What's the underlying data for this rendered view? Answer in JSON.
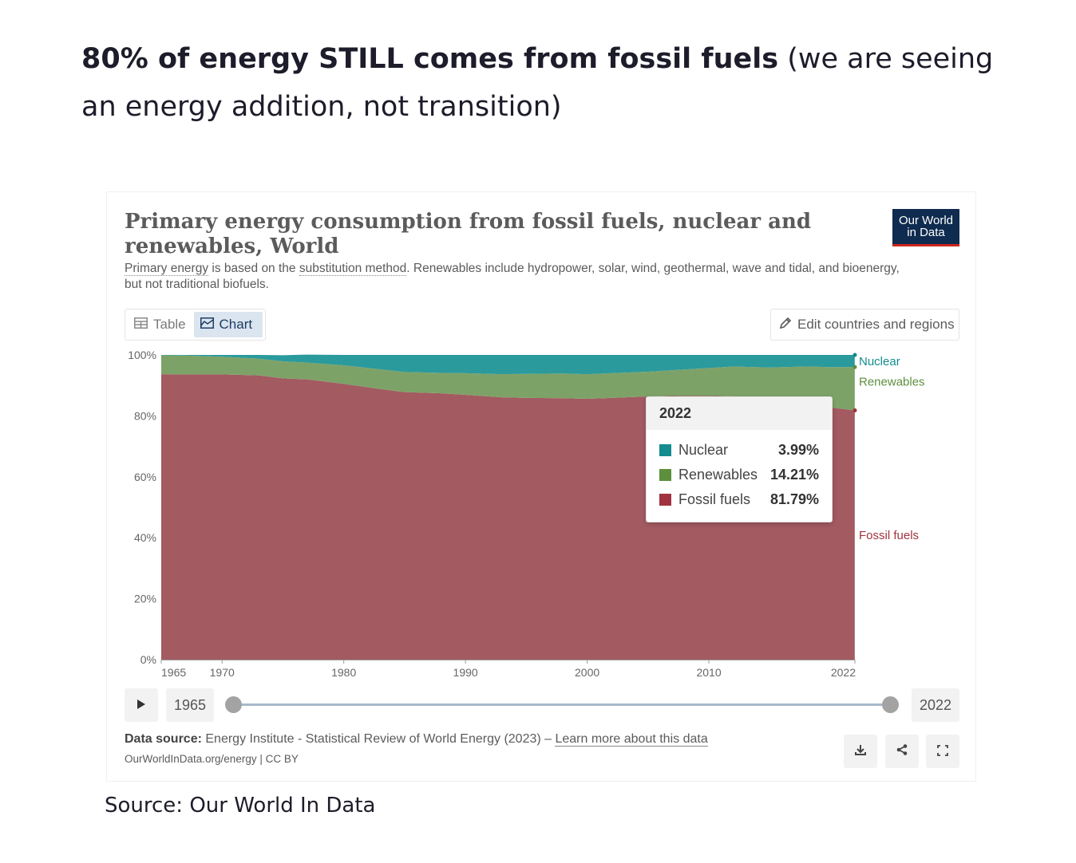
{
  "headline": {
    "bold": "80% of energy STILL comes from fossil fuels",
    "rest": " (we are seeing an energy addition, not transition)"
  },
  "card": {
    "title": "Primary energy consumption from fossil fuels, nuclear and renewables, World",
    "logo_line1": "Our World",
    "logo_line2": "in Data",
    "subtitle_link1": "Primary energy",
    "subtitle_part1": " is based on the ",
    "subtitle_link2": "substitution method",
    "subtitle_part2": ". Renewables include hydropower, solar, wind, geothermal, wave and tidal, and bioenergy, but not traditional biofuels.",
    "tab_table": "Table",
    "tab_chart": "Chart",
    "edit_button": "Edit countries and regions",
    "timeline_start": "1965",
    "timeline_end": "2022",
    "source_label": "Data source:",
    "source_text": " Energy Institute - Statistical Review of World Energy (2023) – ",
    "learn_more": "Learn more about this data",
    "url": "OurWorldInData.org/energy | CC BY"
  },
  "tooltip": {
    "year": "2022",
    "rows": [
      {
        "name": "Nuclear",
        "value": "3.99%"
      },
      {
        "name": "Renewables",
        "value": "14.21%"
      },
      {
        "name": "Fossil fuels",
        "value": "81.79%"
      }
    ]
  },
  "colors": {
    "nuclear": "#2a9a9c",
    "renewables": "#7da268",
    "fossil": "#a35a61",
    "nuclear_label": "#138b8f",
    "renewables_label": "#5e8f3e",
    "fossil_label": "#a0333f"
  },
  "chart_data": {
    "type": "area",
    "title": "Primary energy consumption from fossil fuels, nuclear and renewables, World",
    "stacked": true,
    "x": [
      1965,
      1967,
      1970,
      1973,
      1975,
      1977,
      1980,
      1983,
      1985,
      1988,
      1990,
      1993,
      1995,
      1998,
      2000,
      2002,
      2005,
      2008,
      2010,
      2012,
      2015,
      2018,
      2020,
      2022
    ],
    "series": [
      {
        "name": "Fossil fuels",
        "values": [
          93.7,
          93.6,
          93.6,
          93.3,
          92.3,
          92.0,
          90.5,
          88.8,
          87.8,
          87.4,
          86.9,
          86.1,
          85.9,
          85.8,
          85.6,
          85.9,
          86.4,
          86.6,
          86.6,
          86.4,
          85.0,
          84.3,
          82.8,
          81.79
        ]
      },
      {
        "name": "Renewables",
        "values": [
          6.2,
          6.2,
          5.8,
          5.5,
          5.6,
          5.5,
          6.1,
          6.5,
          6.6,
          6.7,
          7.1,
          7.6,
          7.9,
          8.1,
          8.1,
          8.1,
          8.1,
          8.6,
          9.1,
          9.8,
          10.9,
          11.9,
          13.2,
          14.21
        ]
      },
      {
        "name": "Nuclear",
        "values": [
          0.1,
          0.2,
          0.6,
          1.2,
          2.0,
          2.6,
          3.4,
          4.7,
          5.6,
          5.9,
          6.0,
          6.3,
          6.2,
          6.1,
          6.3,
          6.0,
          5.5,
          4.8,
          4.3,
          3.8,
          4.1,
          3.8,
          4.0,
          3.99
        ]
      }
    ],
    "xlim": [
      1965,
      2022
    ],
    "ylim": [
      0,
      100
    ],
    "x_ticks": [
      1965,
      1970,
      1980,
      1990,
      2000,
      2010,
      2022
    ],
    "y_ticks": [
      "0%",
      "20%",
      "40%",
      "60%",
      "80%",
      "100%"
    ],
    "y_tick_values": [
      0,
      20,
      40,
      60,
      80,
      100
    ],
    "series_labels": [
      "Nuclear",
      "Renewables",
      "Fossil fuels"
    ],
    "grid": false
  },
  "caption": "Source: Our World In Data"
}
